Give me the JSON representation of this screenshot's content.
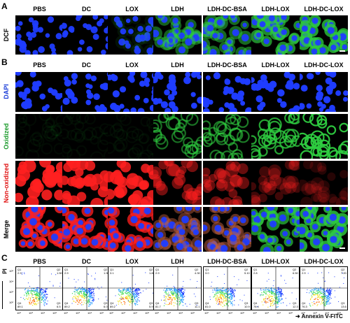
{
  "panels": {
    "a": "A",
    "b": "B",
    "c": "C"
  },
  "columns": [
    "PBS",
    "DC",
    "LOX",
    "LDH",
    "LDH-DC-BSA",
    "LDH-LOX",
    "LDH-DC-LOX"
  ],
  "row_labels": {
    "a": "DCF",
    "dapi": "DAPI",
    "oxidized": "Oxidized",
    "non_oxidized": "Non-oxidized",
    "merge": "Merge"
  },
  "colors": {
    "dapi": "#1f3cff",
    "oxidized": "#2ecc40",
    "non_oxidized": "#ff2020",
    "oxidized_label": "#1a9a2a",
    "non_oxidized_label": "#e01010",
    "dapi_label": "#1a3cd8"
  },
  "panel_a_green": [
    0,
    0,
    0.1,
    0.55,
    0.6,
    0.8,
    0.9
  ],
  "panel_b_oxidized": [
    0.05,
    0.05,
    0.05,
    0.55,
    0.6,
    0.8,
    0.95
  ],
  "panel_b_red": [
    0.9,
    0.85,
    0.85,
    0.45,
    0.4,
    0.25,
    0.15
  ],
  "flow": {
    "y_axis": "PI",
    "x_axis": "Annexin V-FITC",
    "quadrants": [
      {
        "q1": "Q1",
        "v1": "2.9",
        "q2": "Q2",
        "v2": "1.50",
        "q3": "Q3",
        "v3": "6.5",
        "q4": "Q4",
        "v4": "89.1"
      },
      {
        "q1": "Q1",
        "v1": "2.9",
        "q2": "Q2",
        "v2": "1.90",
        "q3": "Q3",
        "v3": "6.0",
        "q4": "Q4",
        "v4": "89.2"
      },
      {
        "q1": "Q1",
        "v1": "3.1",
        "q2": "Q2",
        "v2": "1.80",
        "q3": "Q3",
        "v3": "5.9",
        "q4": "Q4",
        "v4": "89.2"
      },
      {
        "q1": "Q1",
        "v1": "2.9",
        "q2": "Q2",
        "v2": "4.30",
        "q3": "Q3",
        "v3": "11.1",
        "q4": "Q4",
        "v4": "81.7"
      },
      {
        "q1": "Q1",
        "v1": "3.0",
        "q2": "Q2",
        "v2": "5.10",
        "q3": "Q3",
        "v3": "10.9",
        "q4": "Q4",
        "v4": "81.0"
      },
      {
        "q1": "Q1",
        "v1": "2.8",
        "q2": "Q2",
        "v2": "6.50",
        "q3": "Q3",
        "v3": "12.3",
        "q4": "Q4",
        "v4": "78.4"
      },
      {
        "q1": "Q1",
        "v1": "2.9",
        "q2": "Q2",
        "v2": "7.20",
        "q3": "Q3",
        "v3": "13.6",
        "q4": "Q4",
        "v4": "76.3"
      }
    ],
    "y_ticks": [
      "10⁵",
      "10⁴",
      "10³",
      "10²"
    ],
    "x_ticks": [
      "10²",
      "10³",
      "10⁴",
      "10⁵"
    ]
  }
}
